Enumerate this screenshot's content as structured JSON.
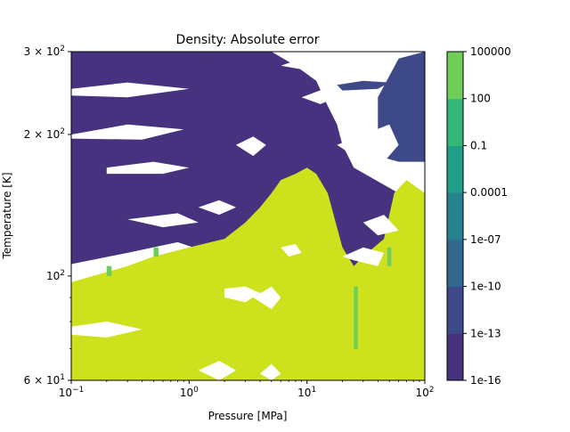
{
  "chart_data": {
    "type": "contour",
    "title": "Density: Absolute error",
    "xlabel": "Pressure [MPa]",
    "ylabel": "Temperature [K]",
    "xscale": "log",
    "yscale": "log",
    "xlim": [
      0.1,
      100
    ],
    "ylim": [
      60,
      300
    ],
    "x_ticks": [
      {
        "value": 0.1,
        "base": "10",
        "exp": "−1"
      },
      {
        "value": 1,
        "base": "10",
        "exp": "0"
      },
      {
        "value": 10,
        "base": "10",
        "exp": "1"
      },
      {
        "value": 100,
        "base": "10",
        "exp": "2"
      }
    ],
    "y_ticks": [
      {
        "value": 60,
        "mant": "6",
        "base": "10",
        "exp": "1"
      },
      {
        "value": 100,
        "mant": "",
        "base": "10",
        "exp": "2"
      },
      {
        "value": 200,
        "mant": "2",
        "base": "10",
        "exp": "2"
      },
      {
        "value": 300,
        "mant": "3",
        "base": "10",
        "exp": "2"
      }
    ],
    "colorbar": {
      "scale": "log",
      "levels": [
        "1e-16",
        "1e-13",
        "1e-10",
        "1e-07",
        "0.0001",
        "0.1",
        "100",
        "100000"
      ],
      "colors": [
        "#46327e",
        "#3e4989",
        "#31688e",
        "#26828e",
        "#1f9e89",
        "#35b779",
        "#6ece58",
        "#cde11d"
      ]
    },
    "regions": [
      {
        "level": 0,
        "label": "1e-16 to 1e-13",
        "polygons": [
          [
            [
              0.1,
              300
            ],
            [
              0.1,
              140
            ],
            [
              0.14,
              138
            ],
            [
              0.2,
              132
            ],
            [
              0.3,
              126
            ],
            [
              0.5,
              122
            ],
            [
              0.8,
              118
            ],
            [
              1.2,
              114
            ],
            [
              2,
              110
            ],
            [
              3,
              105
            ],
            [
              5,
              102
            ],
            [
              7,
              100
            ],
            [
              10,
              97
            ],
            [
              15,
              96
            ],
            [
              20,
              95
            ],
            [
              21,
              80
            ],
            [
              21,
              60
            ],
            [
              26,
              60
            ],
            [
              26,
              100
            ],
            [
              35,
              110
            ],
            [
              50,
              120
            ],
            [
              60,
              150
            ],
            [
              25,
              170
            ],
            [
              20,
              190
            ],
            [
              18,
              210
            ],
            [
              15,
              230
            ],
            [
              12,
              260
            ],
            [
              8,
              280
            ],
            [
              5,
              300
            ]
          ],
          [
            [
              0.1,
              106
            ],
            [
              0.3,
              112
            ],
            [
              0.8,
              118
            ],
            [
              1.5,
              125
            ],
            [
              2.5,
              135
            ],
            [
              3.5,
              145
            ],
            [
              5,
              160
            ],
            [
              6,
              170
            ],
            [
              6,
              180
            ],
            [
              5,
              188
            ],
            [
              4,
              200
            ],
            [
              3.5,
              215
            ],
            [
              3,
              230
            ],
            [
              2.5,
              250
            ],
            [
              2,
              270
            ],
            [
              1.5,
              290
            ],
            [
              1.2,
              300
            ],
            [
              0.1,
              300
            ]
          ]
        ]
      },
      {
        "level": 1,
        "label": "1e-13 to 1e-10",
        "polygons": [
          [
            [
              22,
              60
            ],
            [
              26,
              60
            ],
            [
              26,
              98
            ],
            [
              22,
              98
            ]
          ],
          [
            [
              18,
              255
            ],
            [
              30,
              260
            ],
            [
              50,
              258
            ],
            [
              40,
              250
            ],
            [
              20,
              248
            ]
          ],
          [
            [
              40,
              180
            ],
            [
              60,
              175
            ],
            [
              100,
              175
            ],
            [
              100,
              300
            ],
            [
              60,
              290
            ],
            [
              40,
              240
            ]
          ]
        ]
      },
      {
        "level": 7,
        "label": "100 to 100000",
        "polygons": [
          [
            [
              0.1,
              60
            ],
            [
              100,
              60
            ],
            [
              100,
              150
            ],
            [
              70,
              160
            ],
            [
              55,
              150
            ],
            [
              45,
              120
            ],
            [
              30,
              110
            ],
            [
              25,
              105
            ],
            [
              20,
              115
            ],
            [
              15,
              150
            ],
            [
              12,
              165
            ],
            [
              10,
              170
            ],
            [
              8,
              165
            ],
            [
              6,
              160
            ],
            [
              5,
              150
            ],
            [
              4,
              140
            ],
            [
              3,
              130
            ],
            [
              2,
              120
            ],
            [
              1,
              115
            ],
            [
              0.5,
              110
            ],
            [
              0.3,
              105
            ],
            [
              0.1,
              97
            ]
          ]
        ]
      },
      {
        "level": 6,
        "label": "0.1 to 100",
        "polygons": [
          [
            [
              0.2,
              100
            ],
            [
              0.22,
              100
            ],
            [
              0.22,
              105
            ],
            [
              0.2,
              105
            ]
          ],
          [
            [
              0.5,
              110
            ],
            [
              0.55,
              110
            ],
            [
              0.55,
              115
            ],
            [
              0.5,
              115
            ]
          ],
          [
            [
              25,
              70
            ],
            [
              27,
              70
            ],
            [
              27,
              95
            ],
            [
              25,
              95
            ]
          ],
          [
            [
              48,
              105
            ],
            [
              52,
              105
            ],
            [
              52,
              115
            ],
            [
              48,
              115
            ]
          ]
        ]
      },
      {
        "level": -1,
        "label": "white holes",
        "polygons": [
          [
            [
              0.1,
              78
            ],
            [
              0.2,
              80
            ],
            [
              0.4,
              77
            ],
            [
              0.2,
              74
            ],
            [
              0.1,
              75
            ]
          ],
          [
            [
              1.2,
              63
            ],
            [
              1.8,
              66
            ],
            [
              2.5,
              63
            ],
            [
              1.8,
              60
            ]
          ],
          [
            [
              2,
              94
            ],
            [
              3,
              95
            ],
            [
              4,
              92
            ],
            [
              3,
              88
            ],
            [
              2,
              90
            ]
          ],
          [
            [
              3.5,
              90
            ],
            [
              5,
              95
            ],
            [
              6,
              90
            ],
            [
              5,
              85
            ]
          ],
          [
            [
              6,
              115
            ],
            [
              8,
              117
            ],
            [
              9,
              112
            ],
            [
              7,
              110
            ]
          ],
          [
            [
              4,
              62
            ],
            [
              5,
              65
            ],
            [
              6,
              62
            ],
            [
              5,
              60
            ]
          ],
          [
            [
              20,
              110
            ],
            [
              30,
              115
            ],
            [
              45,
              112
            ],
            [
              40,
              105
            ],
            [
              25,
              108
            ]
          ],
          [
            [
              30,
              130
            ],
            [
              45,
              135
            ],
            [
              60,
              125
            ],
            [
              40,
              122
            ]
          ],
          [
            [
              18,
              190
            ],
            [
              30,
              200
            ],
            [
              50,
              210
            ],
            [
              60,
              190
            ],
            [
              45,
              175
            ],
            [
              25,
              180
            ]
          ],
          [
            [
              0.1,
              250
            ],
            [
              0.3,
              258
            ],
            [
              1,
              250
            ],
            [
              0.3,
              240
            ],
            [
              0.1,
              242
            ]
          ],
          [
            [
              0.1,
              200
            ],
            [
              0.3,
              210
            ],
            [
              0.9,
              205
            ],
            [
              0.4,
              195
            ],
            [
              0.1,
              196
            ]
          ],
          [
            [
              0.2,
              170
            ],
            [
              0.5,
              175
            ],
            [
              1,
              170
            ],
            [
              0.6,
              165
            ],
            [
              0.2,
              165
            ]
          ],
          [
            [
              1.2,
              140
            ],
            [
              1.8,
              145
            ],
            [
              2.5,
              140
            ],
            [
              1.8,
              135
            ]
          ],
          [
            [
              0.3,
              132
            ],
            [
              0.8,
              136
            ],
            [
              1.2,
              130
            ],
            [
              0.6,
              127
            ]
          ],
          [
            [
              9,
              240
            ],
            [
              14,
              250
            ],
            [
              18,
              240
            ],
            [
              13,
              232
            ]
          ],
          [
            [
              6,
              280
            ],
            [
              9,
              290
            ],
            [
              12,
              285
            ],
            [
              9,
              275
            ]
          ],
          [
            [
              2.5,
              190
            ],
            [
              3.5,
              198
            ],
            [
              4.5,
              190
            ],
            [
              3.5,
              180
            ]
          ]
        ]
      }
    ]
  }
}
